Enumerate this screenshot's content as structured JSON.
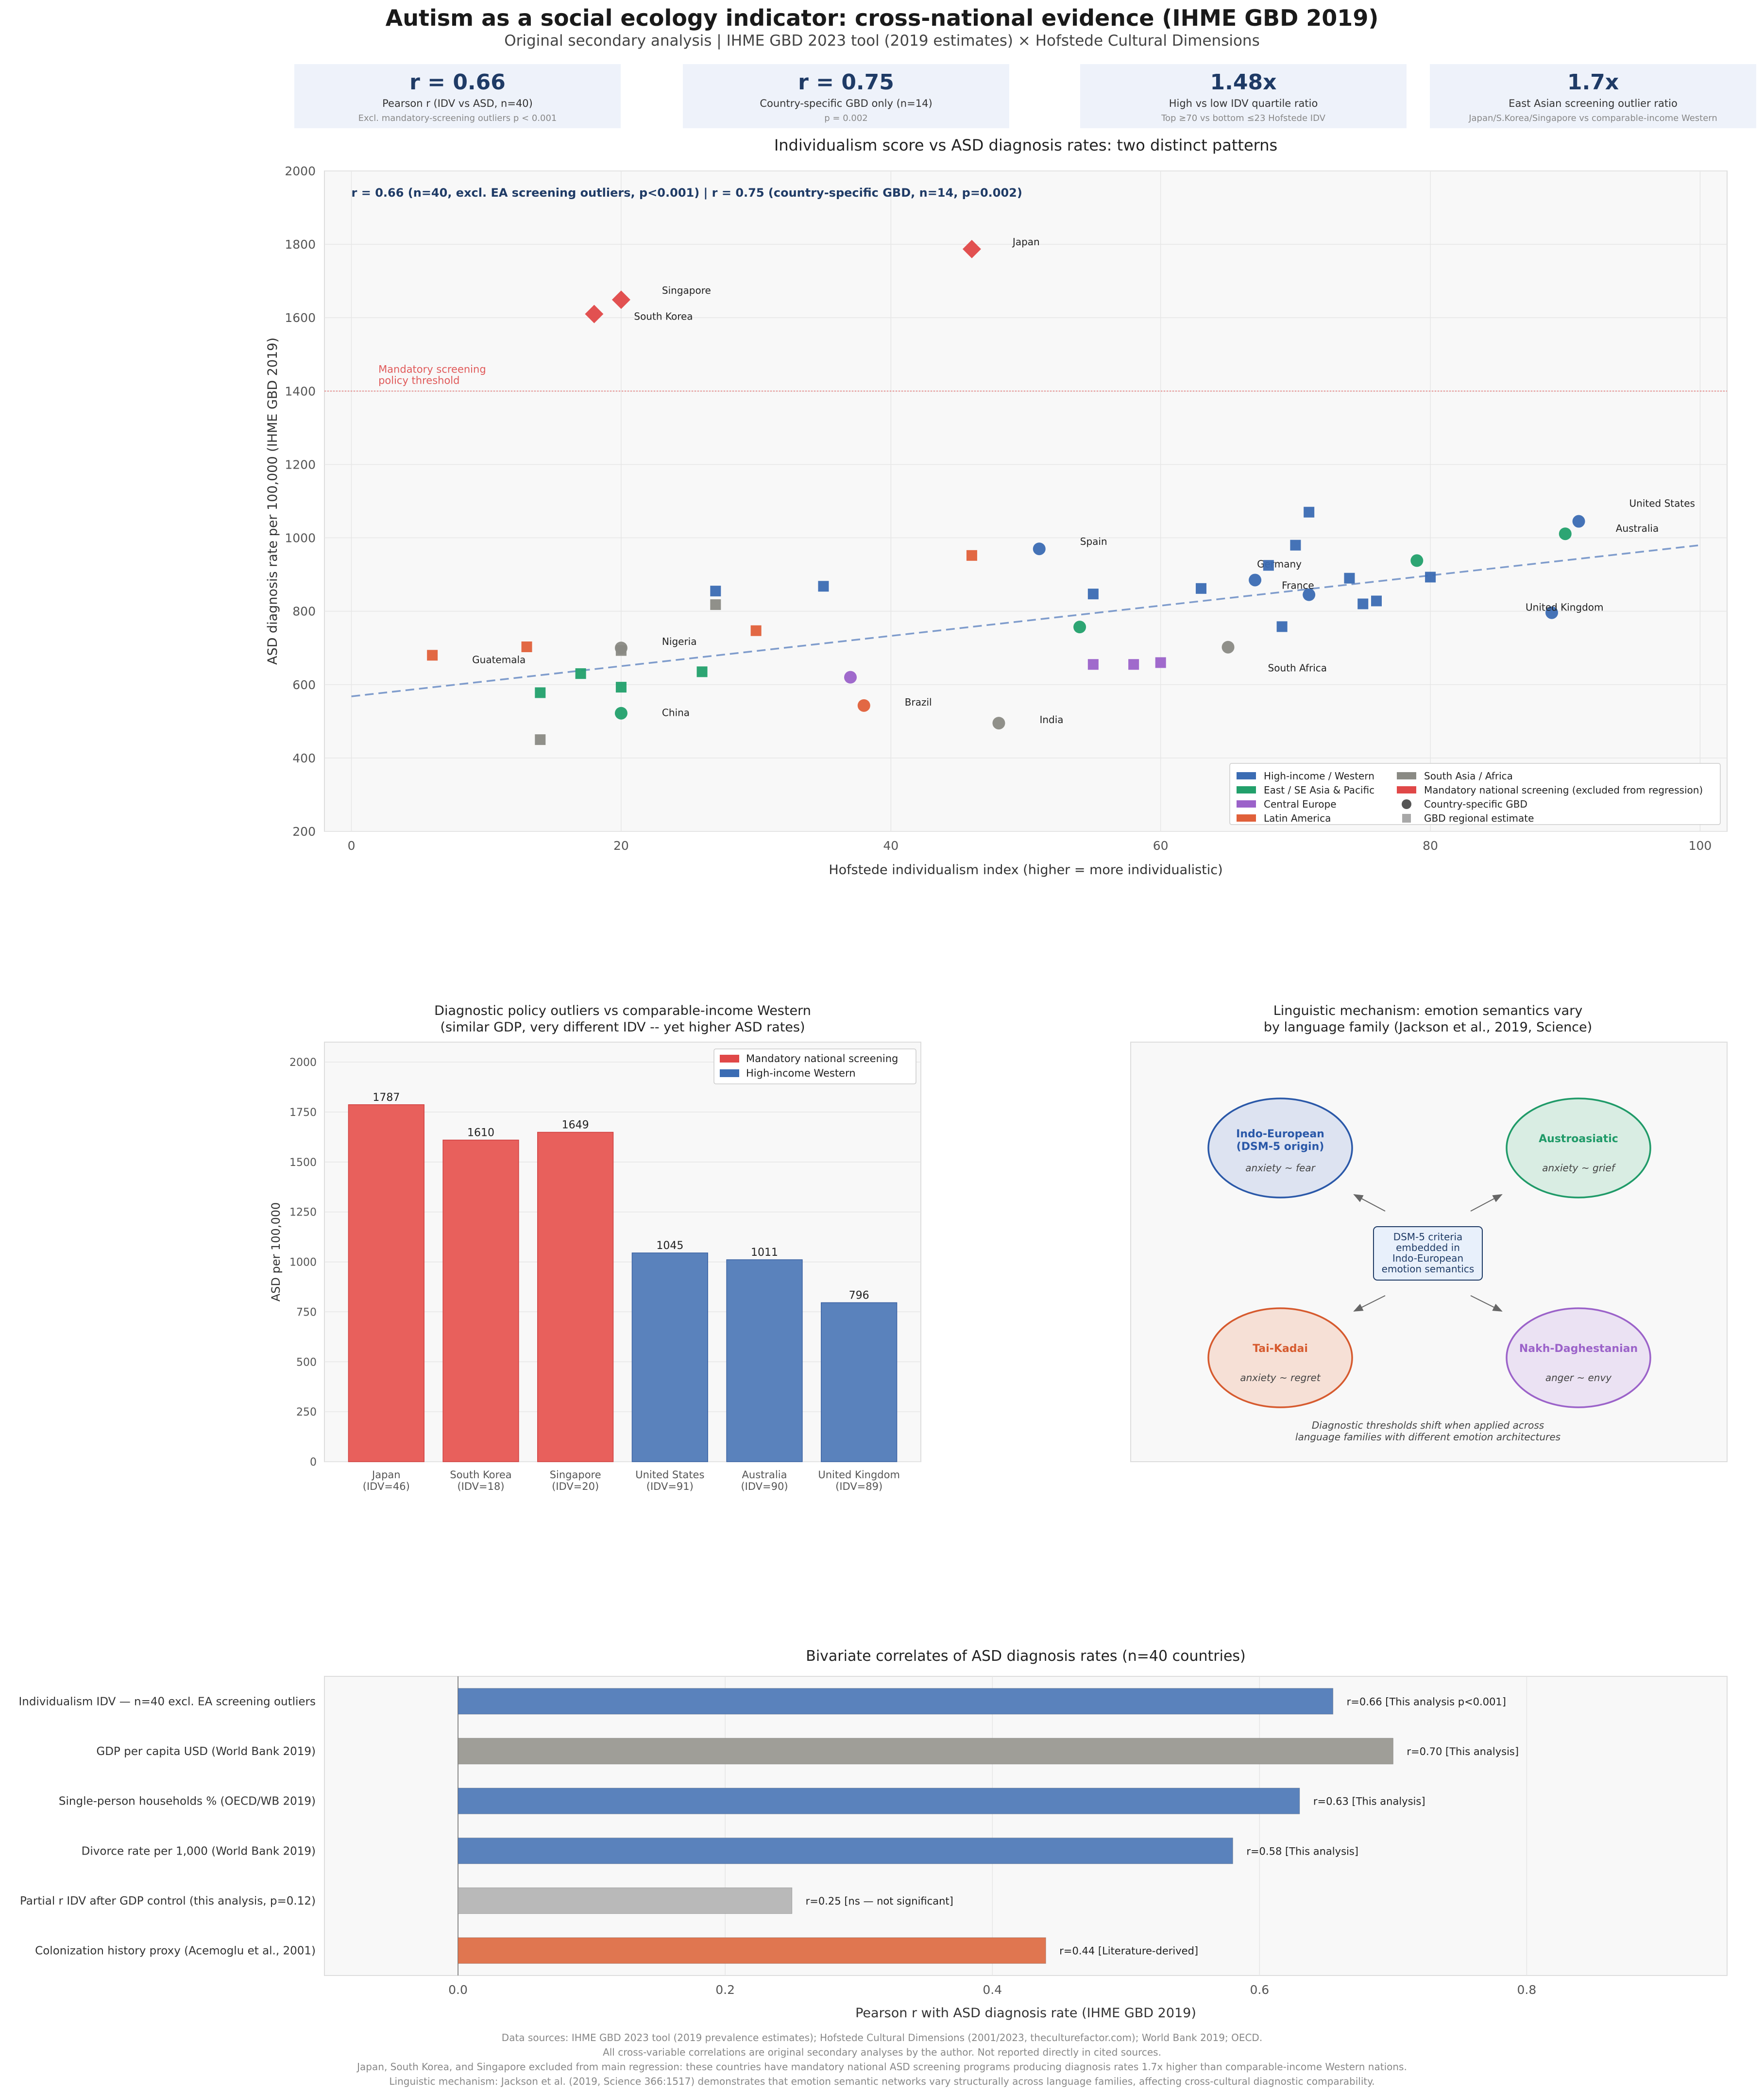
{
  "header": {
    "title": "Autism as a social ecology indicator: cross-national evidence (IHME GBD 2019)",
    "subtitle": "Original secondary analysis  |  IHME GBD 2023 tool (2019 estimates) × Hofstede Cultural Dimensions"
  },
  "cards": [
    {
      "value": "r = 0.66",
      "label": "Pearson r (IDV vs ASD, n=40)",
      "note": "Excl. mandatory-screening outliers  p < 0.001"
    },
    {
      "value": "r = 0.75",
      "label": "Country-specific GBD only (n=14)",
      "note": "p = 0.002"
    },
    {
      "value": "1.48x",
      "label": "High vs low IDV quartile ratio",
      "note": "Top ≥70 vs bottom ≤23 Hofstede IDV"
    },
    {
      "value": "1.7x",
      "label": "East Asian screening outlier ratio",
      "note": "Japan/S.Korea/Singapore vs comparable-income Western"
    }
  ],
  "colors": {
    "western": "#3b6cb3",
    "eastasia": "#22a06b",
    "central": "#9b62c9",
    "latin": "#e0603a",
    "southasia": "#8a8a84",
    "mandatory": "#e04848",
    "regional_gray": "#9a9a9a",
    "bar_red": "#e8605c",
    "bar_blue": "#5a82bc",
    "bar_gray": "#9f9e98",
    "bar_lightgray": "#b9b9b9",
    "bar_orange": "#e07650",
    "fit_line": "#7f9ccc",
    "threshold": "#e58a8a"
  },
  "chart_data": [
    {
      "type": "scatter",
      "title": "Individualism score vs ASD diagnosis rates: two distinct patterns",
      "xlabel": "Hofstede individualism index (higher = more individualistic)",
      "ylabel": "ASD diagnosis rate per 100,000 (IHME GBD 2019)",
      "xlim": [
        -2,
        102
      ],
      "ylim": [
        200,
        2000
      ],
      "xticks": [
        0,
        20,
        40,
        60,
        80,
        100
      ],
      "yticks": [
        200,
        400,
        600,
        800,
        1000,
        1200,
        1400,
        1600,
        1800,
        2000
      ],
      "annotation": "r = 0.66 (n=40, excl. EA screening outliers, p<0.001)   |   r = 0.75 (country-specific GBD, n=14, p=0.002)",
      "threshold": {
        "y": 1400,
        "label_line1": "Mandatory screening",
        "label_line2": "policy threshold"
      },
      "fit_line": {
        "x0": 0,
        "y0": 568,
        "x1": 100,
        "y1": 980
      },
      "points": [
        {
          "x": 46,
          "y": 1787,
          "group": "mandatory",
          "marker": "diamond",
          "label": "Japan"
        },
        {
          "x": 20,
          "y": 1649,
          "group": "mandatory",
          "marker": "diamond",
          "label": "Singapore"
        },
        {
          "x": 18,
          "y": 1610,
          "group": "mandatory",
          "marker": "diamond",
          "label": "South Korea"
        },
        {
          "x": 91,
          "y": 1045,
          "group": "western",
          "marker": "circle",
          "label": "United States"
        },
        {
          "x": 90,
          "y": 1011,
          "group": "eastasia",
          "marker": "circle",
          "label": "Australia"
        },
        {
          "x": 89,
          "y": 796,
          "group": "western",
          "marker": "circle",
          "label": "United Kingdom"
        },
        {
          "x": 51,
          "y": 970,
          "group": "western",
          "marker": "circle",
          "label": "Spain"
        },
        {
          "x": 67,
          "y": 885,
          "group": "western",
          "marker": "circle",
          "label": "Germany"
        },
        {
          "x": 71,
          "y": 845,
          "group": "western",
          "marker": "circle",
          "label": "France"
        },
        {
          "x": 65,
          "y": 702,
          "group": "southasia",
          "marker": "circle",
          "label": "South Africa"
        },
        {
          "x": 6,
          "y": 680,
          "group": "latin",
          "marker": "square",
          "label": "Guatemala"
        },
        {
          "x": 20,
          "y": 700,
          "group": "southasia",
          "marker": "circle",
          "label": "Nigeria"
        },
        {
          "x": 20,
          "y": 522,
          "group": "eastasia",
          "marker": "circle",
          "label": "China"
        },
        {
          "x": 38,
          "y": 543,
          "group": "latin",
          "marker": "circle",
          "label": "Brazil"
        },
        {
          "x": 48,
          "y": 495,
          "group": "southasia",
          "marker": "circle",
          "label": "India"
        },
        {
          "x": 37,
          "y": 620,
          "group": "central",
          "marker": "circle",
          "label": ""
        },
        {
          "x": 54,
          "y": 757,
          "group": "eastasia",
          "marker": "circle",
          "label": ""
        },
        {
          "x": 79,
          "y": 938,
          "group": "eastasia",
          "marker": "circle",
          "label": ""
        },
        {
          "x": 13,
          "y": 703,
          "group": "latin",
          "marker": "square",
          "label": ""
        },
        {
          "x": 30,
          "y": 747,
          "group": "latin",
          "marker": "square",
          "label": ""
        },
        {
          "x": 46,
          "y": 952,
          "group": "latin",
          "marker": "square",
          "label": ""
        },
        {
          "x": 14,
          "y": 578,
          "group": "eastasia",
          "marker": "square",
          "label": ""
        },
        {
          "x": 17,
          "y": 630,
          "group": "eastasia",
          "marker": "square",
          "label": ""
        },
        {
          "x": 20,
          "y": 593,
          "group": "eastasia",
          "marker": "square",
          "label": ""
        },
        {
          "x": 26,
          "y": 635,
          "group": "eastasia",
          "marker": "square",
          "label": ""
        },
        {
          "x": 14,
          "y": 450,
          "group": "southasia",
          "marker": "square",
          "label": ""
        },
        {
          "x": 20,
          "y": 693,
          "group": "southasia",
          "marker": "square",
          "label": ""
        },
        {
          "x": 27,
          "y": 818,
          "group": "southasia",
          "marker": "square",
          "label": ""
        },
        {
          "x": 27,
          "y": 855,
          "group": "western",
          "marker": "square",
          "label": ""
        },
        {
          "x": 35,
          "y": 868,
          "group": "western",
          "marker": "square",
          "label": ""
        },
        {
          "x": 55,
          "y": 847,
          "group": "western",
          "marker": "square",
          "label": ""
        },
        {
          "x": 63,
          "y": 862,
          "group": "western",
          "marker": "square",
          "label": ""
        },
        {
          "x": 68,
          "y": 925,
          "group": "western",
          "marker": "square",
          "label": ""
        },
        {
          "x": 69,
          "y": 758,
          "group": "western",
          "marker": "square",
          "label": ""
        },
        {
          "x": 70,
          "y": 980,
          "group": "western",
          "marker": "square",
          "label": ""
        },
        {
          "x": 71,
          "y": 1070,
          "group": "western",
          "marker": "square",
          "label": ""
        },
        {
          "x": 74,
          "y": 890,
          "group": "western",
          "marker": "square",
          "label": ""
        },
        {
          "x": 75,
          "y": 820,
          "group": "western",
          "marker": "square",
          "label": ""
        },
        {
          "x": 76,
          "y": 828,
          "group": "western",
          "marker": "square",
          "label": ""
        },
        {
          "x": 80,
          "y": 893,
          "group": "western",
          "marker": "square",
          "label": ""
        },
        {
          "x": 55,
          "y": 655,
          "group": "central",
          "marker": "square",
          "label": ""
        },
        {
          "x": 58,
          "y": 655,
          "group": "central",
          "marker": "square",
          "label": ""
        },
        {
          "x": 60,
          "y": 660,
          "group": "central",
          "marker": "square",
          "label": ""
        }
      ],
      "legend": [
        {
          "label": "High-income / Western",
          "group": "western",
          "shape": "patch"
        },
        {
          "label": "South Asia / Africa",
          "group": "southasia",
          "shape": "patch"
        },
        {
          "label": "East / SE Asia & Pacific",
          "group": "eastasia",
          "shape": "patch"
        },
        {
          "label": "Mandatory national screening (excluded from regression)",
          "group": "mandatory",
          "shape": "patch"
        },
        {
          "label": "Central Europe",
          "group": "central",
          "shape": "patch"
        },
        {
          "label": "Country-specific GBD",
          "group": "dark",
          "shape": "circle"
        },
        {
          "label": "Latin America",
          "group": "latin",
          "shape": "patch"
        },
        {
          "label": "GBD regional estimate",
          "group": "lightgray",
          "shape": "square"
        }
      ]
    },
    {
      "type": "bar",
      "title_line1": "Diagnostic policy outliers vs comparable-income Western",
      "title_line2": "(similar GDP, very different IDV -- yet higher ASD rates)",
      "ylabel": "ASD per 100,000",
      "ylim": [
        0,
        2100
      ],
      "yticks": [
        0,
        250,
        500,
        750,
        1000,
        1250,
        1500,
        1750,
        2000
      ],
      "categories": [
        {
          "name": "Japan",
          "idv": "(IDV=46)",
          "value": 1787,
          "group": "mandatory"
        },
        {
          "name": "South Korea",
          "idv": "(IDV=18)",
          "value": 1610,
          "group": "mandatory"
        },
        {
          "name": "Singapore",
          "idv": "(IDV=20)",
          "value": 1649,
          "group": "mandatory"
        },
        {
          "name": "United States",
          "idv": "(IDV=91)",
          "value": 1045,
          "group": "western"
        },
        {
          "name": "Australia",
          "idv": "(IDV=90)",
          "value": 1011,
          "group": "western"
        },
        {
          "name": "United Kingdom",
          "idv": "(IDV=89)",
          "value": 796,
          "group": "western"
        }
      ],
      "legend": [
        {
          "label": "Mandatory national screening",
          "group": "mandatory"
        },
        {
          "label": "High-income Western",
          "group": "western"
        }
      ]
    },
    {
      "type": "horizontal-bar",
      "title": "Bivariate correlates of ASD diagnosis rates (n=40 countries)",
      "xlabel": "Pearson r with ASD diagnosis rate  (IHME GBD 2019)",
      "xlim": [
        -0.1,
        0.95
      ],
      "xticks": [
        0.0,
        0.2,
        0.4,
        0.6,
        0.8
      ],
      "bars": [
        {
          "label": "Individualism IDV — n=40 excl. EA screening outliers",
          "value": 0.655,
          "annot": "r=0.66  [This analysis  p<0.001]",
          "color": "bar_blue"
        },
        {
          "label": "GDP per capita USD (World Bank 2019)",
          "value": 0.7,
          "annot": "r=0.70  [This analysis]",
          "color": "bar_gray"
        },
        {
          "label": "Single-person households % (OECD/WB 2019)",
          "value": 0.63,
          "annot": "r=0.63  [This analysis]",
          "color": "bar_blue"
        },
        {
          "label": "Divorce rate per 1,000 (World Bank 2019)",
          "value": 0.58,
          "annot": "r=0.58  [This analysis]",
          "color": "bar_blue"
        },
        {
          "label": "Partial r IDV after GDP control (this analysis, p=0.12)",
          "value": 0.25,
          "annot": "r=0.25  [ns — not significant]",
          "color": "bar_lightgray"
        },
        {
          "label": "Colonization history proxy (Acemoglu et al., 2001)",
          "value": 0.44,
          "annot": "r=0.44  [Literature-derived]",
          "color": "bar_orange"
        }
      ]
    }
  ],
  "diagram": {
    "title_line1": "Linguistic mechanism: emotion semantics vary",
    "title_line2": "by language family (Jackson et al., 2019, Science)",
    "nodes": [
      {
        "name_line1": "Indo-European",
        "name_line2": "(DSM-5 origin)",
        "sub": "anxiety ~ fear",
        "stroke": "#2a58a8",
        "fill": "#dde3f1",
        "text": "#2a58a8"
      },
      {
        "name_line1": "Austroasiatic",
        "name_line2": "",
        "sub": "anxiety ~ grief",
        "stroke": "#1f9a68",
        "fill": "#d9ede3",
        "text": "#1f9a68"
      },
      {
        "name_line1": "Tai-Kadai",
        "name_line2": "",
        "sub": "anxiety ~ regret",
        "stroke": "#d65a2e",
        "fill": "#f6e0d6",
        "text": "#d65a2e"
      },
      {
        "name_line1": "Nakh-Daghestanian",
        "name_line2": "",
        "sub": "anger ~ envy",
        "stroke": "#9b62c9",
        "fill": "#ebe2f3",
        "text": "#9b62c9"
      }
    ],
    "center": [
      "DSM-5 criteria",
      "embedded in",
      "Indo-European",
      "emotion semantics"
    ],
    "caption_line1": "Diagnostic thresholds shift when applied across",
    "caption_line2": "language families with different emotion architectures"
  },
  "footer": [
    "Data sources: IHME GBD 2023 tool (2019 prevalence estimates); Hofstede Cultural Dimensions (2001/2023, theculturefactor.com); World Bank 2019; OECD.",
    "All cross-variable correlations are original secondary analyses by the author. Not reported directly in cited sources.",
    "Japan, South Korea, and Singapore excluded from main regression: these countries have mandatory national ASD screening programs producing diagnosis rates 1.7x higher than comparable-income Western nations.",
    "Linguistic mechanism: Jackson et al. (2019, Science 366:1517) demonstrates that emotion semantic networks vary structurally across language families, affecting cross-cultural diagnostic comparability."
  ]
}
